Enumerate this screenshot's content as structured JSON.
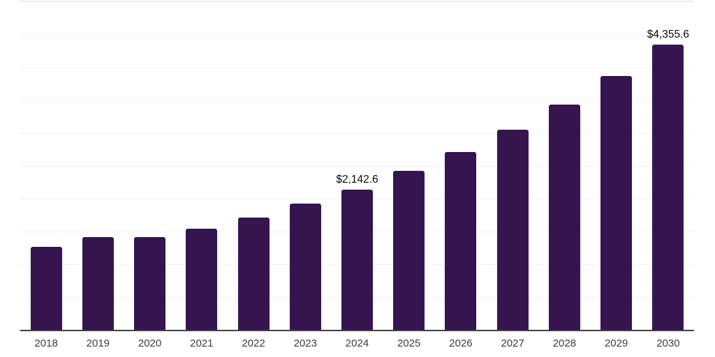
{
  "chart": {
    "background_color": "#ffffff",
    "bar_color": "#351450",
    "axis_line_color": "#414141",
    "gridline_color": "#f2f2f2",
    "plot_top_border_color": "#ededed",
    "value_label_color": "#0a0a0a",
    "tick_label_color": "#3c3c3c"
  },
  "chart_data": {
    "type": "bar",
    "title": "",
    "xlabel": "",
    "ylabel": "",
    "categories": [
      "2018",
      "2019",
      "2020",
      "2021",
      "2022",
      "2023",
      "2024",
      "2025",
      "2026",
      "2027",
      "2028",
      "2029",
      "2030"
    ],
    "values": [
      1265,
      1420,
      1410,
      1540,
      1710,
      1925,
      2142.6,
      2425,
      2710,
      3050,
      3435,
      3870,
      4355.6
    ],
    "data_labels": {
      "2024": "$2,142.6",
      "2030": "$4,355.6"
    },
    "ylim": [
      0,
      5000
    ],
    "gridline_step": 500,
    "grid": "horizontal",
    "y_axis_tick_labels": "none",
    "legend_position": "none"
  }
}
